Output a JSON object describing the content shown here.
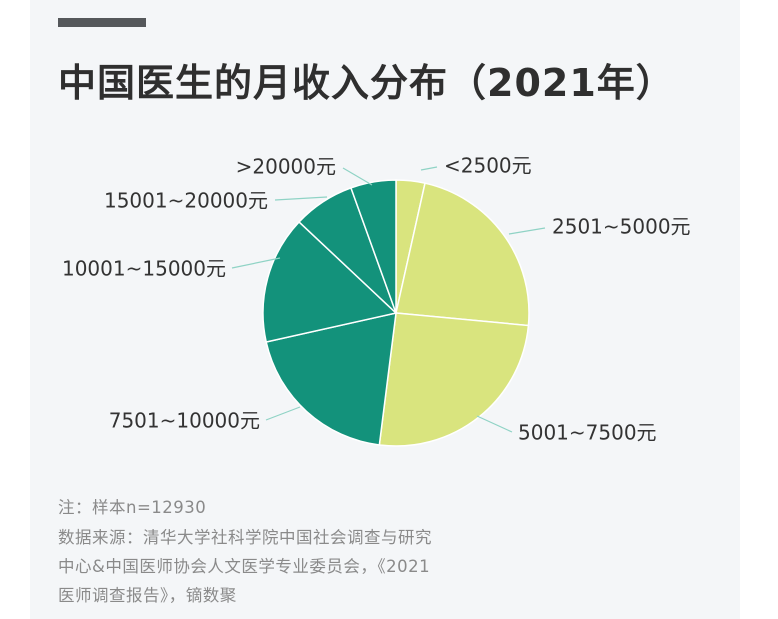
{
  "title": "中国医生的月收入分布（2021年）",
  "colors": {
    "light": "#d9e47e",
    "dark": "#13927b",
    "leader": "#8fd3c5",
    "label": "#333333"
  },
  "chart_data": {
    "type": "pie",
    "title": "中国医生的月收入分布（2021年）",
    "slices": [
      {
        "label": "<2500元",
        "value": 3.5,
        "color": "#d9e47e"
      },
      {
        "label": "2501~5000元",
        "value": 23.0,
        "color": "#d9e47e"
      },
      {
        "label": "5001~7500元",
        "value": 25.5,
        "color": "#d9e47e"
      },
      {
        "label": "7501~10000元",
        "value": 19.5,
        "color": "#13927b"
      },
      {
        "label": "10001~15000元",
        "value": 15.5,
        "color": "#13927b"
      },
      {
        "label": "15001~20000元",
        "value": 7.5,
        "color": "#13927b"
      },
      {
        "label": ">20000元",
        "value": 5.5,
        "color": "#13927b"
      }
    ]
  },
  "notes": {
    "line1": "注：样本n=12930",
    "line2": "数据来源：清华大学社科学院中国社会调查与研究",
    "line3": "中心&中国医师协会人文医学专业委员会，《2021",
    "line4": "医师调查报告》，镝数聚"
  }
}
